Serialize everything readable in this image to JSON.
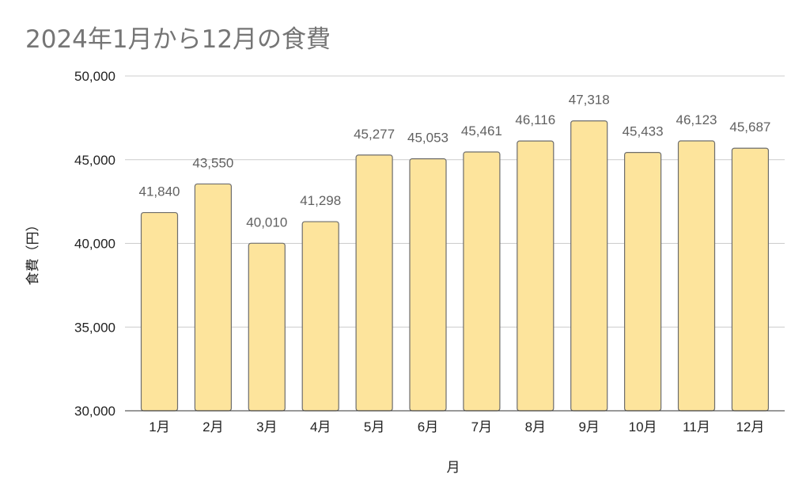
{
  "chart_data": {
    "type": "bar",
    "title": "2024年1月から12月の食費",
    "xlabel": "月",
    "ylabel": "食費（円）",
    "categories": [
      "1月",
      "2月",
      "3月",
      "4月",
      "5月",
      "6月",
      "7月",
      "8月",
      "9月",
      "10月",
      "11月",
      "12月"
    ],
    "values": [
      41840,
      43550,
      40010,
      41298,
      45277,
      45053,
      45461,
      46116,
      47318,
      45433,
      46123,
      45687
    ],
    "data_labels": [
      "41,840",
      "43,550",
      "40,010",
      "41,298",
      "45,277",
      "45,053",
      "45,461",
      "46,116",
      "47,318",
      "45,433",
      "46,123",
      "45,687"
    ],
    "yticks": [
      30000,
      35000,
      40000,
      45000,
      50000
    ],
    "ytick_labels": [
      "30,000",
      "35,000",
      "40,000",
      "45,000",
      "50,000"
    ],
    "ylim": [
      30000,
      50000
    ],
    "grid": true,
    "legend": "none",
    "colors": {
      "bar_fill": "#fde49c",
      "bar_stroke": "#6d6d6d",
      "grid": "#cccccc",
      "title": "#757575"
    }
  }
}
